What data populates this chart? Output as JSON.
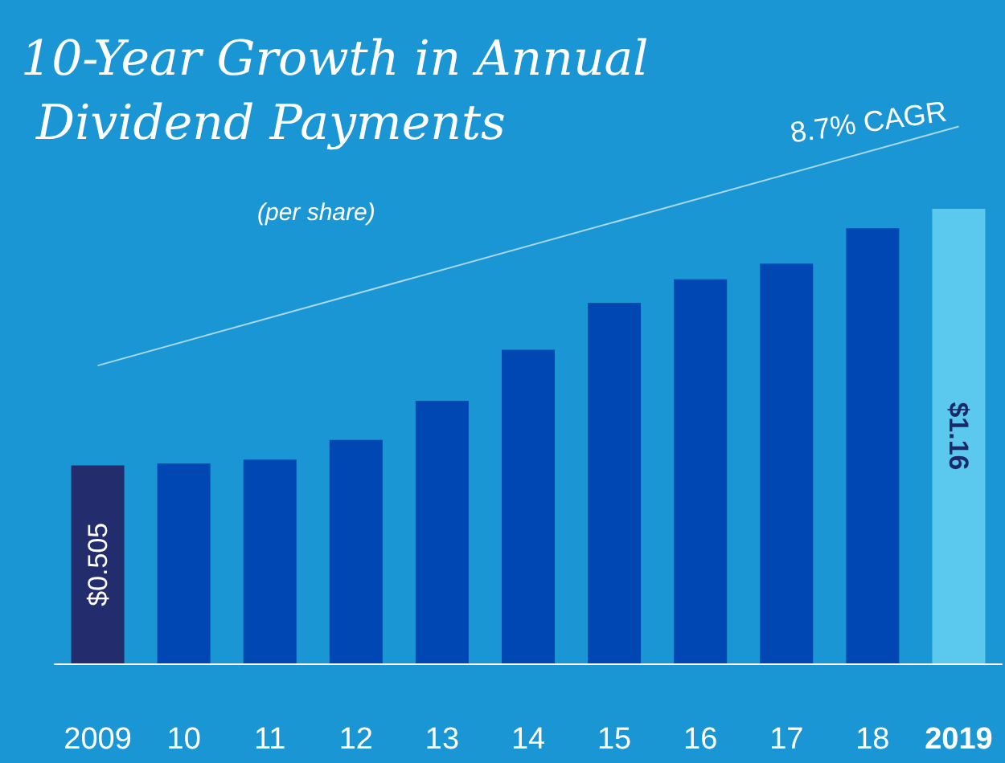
{
  "chart_data": {
    "type": "bar",
    "title": "10-Year Growth in Annual Dividend Payments",
    "subtitle": "(per share)",
    "categories": [
      "2009",
      "10",
      "11",
      "12",
      "13",
      "14",
      "15",
      "16",
      "17",
      "18",
      "2019"
    ],
    "series": [
      {
        "colors": [
          "#232d6e",
          "#0047b3",
          "#0047b3",
          "#0047b3",
          "#0047b3",
          "#0047b3",
          "#0047b3",
          "#0047b3",
          "#0047b3",
          "#0047b3",
          "#5bc8ee"
        ],
        "values": [
          0.505,
          0.51,
          0.52,
          0.57,
          0.67,
          0.8,
          0.92,
          0.98,
          1.02,
          1.11,
          1.16
        ],
        "value_labels": [
          "$0.505",
          null,
          null,
          null,
          null,
          null,
          null,
          null,
          null,
          null,
          "$1.16"
        ]
      },
      {
        "type": "line",
        "color": "#a8d8f2",
        "values": [
          0.76,
          null,
          null,
          null,
          null,
          null,
          null,
          null,
          null,
          null,
          1.37
        ]
      }
    ],
    "annotations": [
      "8.7% CAGR"
    ]
  }
}
